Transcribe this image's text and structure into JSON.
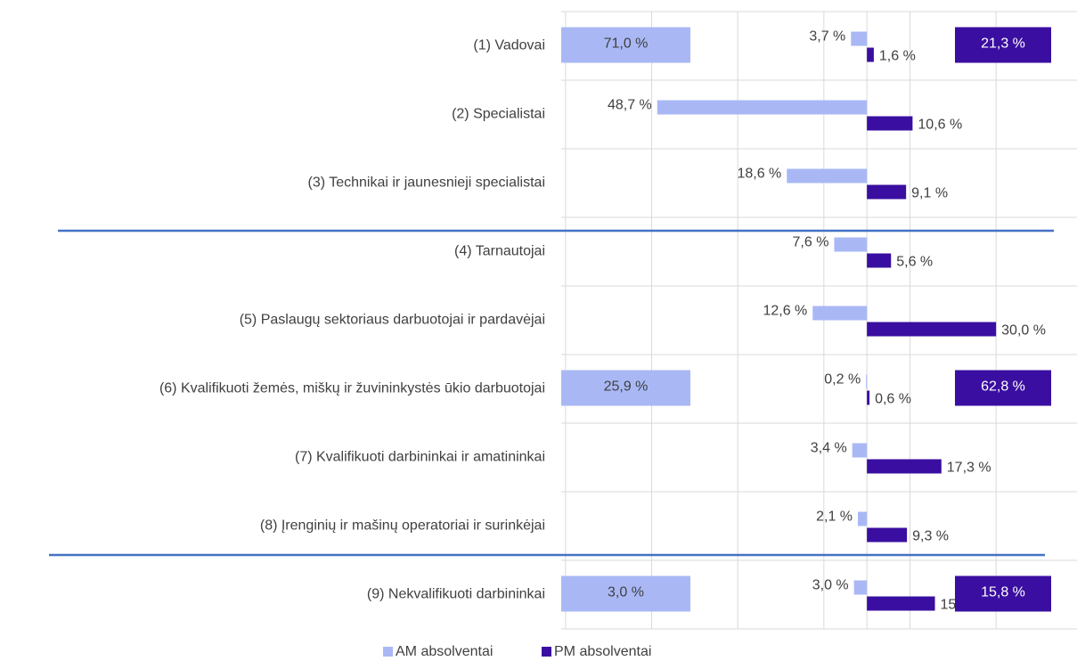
{
  "chart_data": {
    "type": "diverging_bar",
    "categories": [
      "(1) Vadovai",
      "(2) Specialistai",
      "(3) Technikai ir jaunesnieji specialistai",
      "(4) Tarnautojai",
      "(5) Paslaugų sektoriaus darbuotojai ir pardavėjai",
      "(6) Kvalifikuoti žemės, miškų ir žuvininkystės ūkio darbuotojai",
      "(7) Kvalifikuoti darbininkai ir amatininkai",
      "(8) Įrenginių ir mašinų operatoriai ir surinkėjai",
      "(9) Nekvalifikuoti darbininkai"
    ],
    "series": [
      {
        "name": "AM absolventai",
        "color": "#a9b8f5",
        "side": "left",
        "values": [
          3.7,
          48.7,
          18.6,
          7.6,
          12.6,
          0.2,
          3.4,
          2.1,
          3.0
        ],
        "value_labels": [
          "3,7 %",
          "48,7 %",
          "18,6 %",
          "7,6 %",
          "12,6 %",
          "0,2 %",
          "3,4 %",
          "2,1 %",
          "3,0 %"
        ]
      },
      {
        "name": "PM absolventai",
        "color": "#3a0ea0",
        "side": "right",
        "values": [
          1.6,
          10.6,
          9.1,
          5.6,
          30.0,
          0.6,
          17.3,
          9.3,
          15.8
        ],
        "value_labels": [
          "1,6 %",
          "10,6 %",
          "9,1 %",
          "5,6 %",
          "30,0 %",
          "0,6 %",
          "17,3 %",
          "9,3 %",
          "15,8 %"
        ]
      }
    ],
    "highlight_labels": [
      [
        "71,0 %",
        "21,3 %"
      ],
      null,
      null,
      null,
      null,
      [
        "25,9 %",
        "62,8 %"
      ],
      null,
      null,
      [
        "3,0 %",
        "15,8 %"
      ]
    ],
    "xlim": [
      -71,
      49
    ],
    "xgrid": [
      -70,
      -50,
      -30,
      -10,
      0,
      10,
      30
    ],
    "grid": true,
    "legend": "bottom"
  }
}
